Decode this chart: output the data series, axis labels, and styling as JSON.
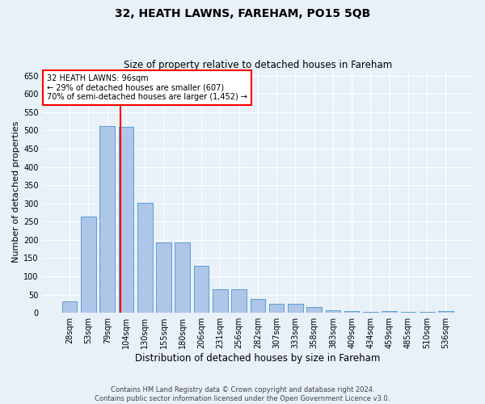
{
  "title": "32, HEATH LAWNS, FAREHAM, PO15 5QB",
  "subtitle": "Size of property relative to detached houses in Fareham",
  "xlabel": "Distribution of detached houses by size in Fareham",
  "ylabel": "Number of detached properties",
  "categories": [
    "28sqm",
    "53sqm",
    "79sqm",
    "104sqm",
    "130sqm",
    "155sqm",
    "180sqm",
    "206sqm",
    "231sqm",
    "256sqm",
    "282sqm",
    "307sqm",
    "333sqm",
    "358sqm",
    "383sqm",
    "409sqm",
    "434sqm",
    "459sqm",
    "485sqm",
    "510sqm",
    "536sqm"
  ],
  "values": [
    32,
    263,
    513,
    510,
    302,
    194,
    194,
    128,
    65,
    65,
    38,
    25,
    25,
    16,
    7,
    5,
    3,
    4,
    3,
    2,
    5
  ],
  "bar_color": "#aec6e8",
  "bar_edge_color": "#5a9fd4",
  "property_line_bin_index": 2.72,
  "annotation_text": "32 HEATH LAWNS: 96sqm\n← 29% of detached houses are smaller (607)\n70% of semi-detached houses are larger (1,452) →",
  "annotation_box_color": "white",
  "annotation_box_edge_color": "red",
  "vline_color": "red",
  "ylim": [
    0,
    665
  ],
  "yticks": [
    0,
    50,
    100,
    150,
    200,
    250,
    300,
    350,
    400,
    450,
    500,
    550,
    600,
    650
  ],
  "footer_line1": "Contains HM Land Registry data © Crown copyright and database right 2024.",
  "footer_line2": "Contains public sector information licensed under the Open Government Licence v3.0.",
  "bg_color": "#e8f0f8",
  "plot_bg_color": "#e8f0f8",
  "grid_color": "white",
  "title_fontsize": 10,
  "subtitle_fontsize": 8.5,
  "ylabel_fontsize": 8,
  "xlabel_fontsize": 8.5,
  "tick_fontsize": 7,
  "annotation_fontsize": 7,
  "footer_fontsize": 6
}
